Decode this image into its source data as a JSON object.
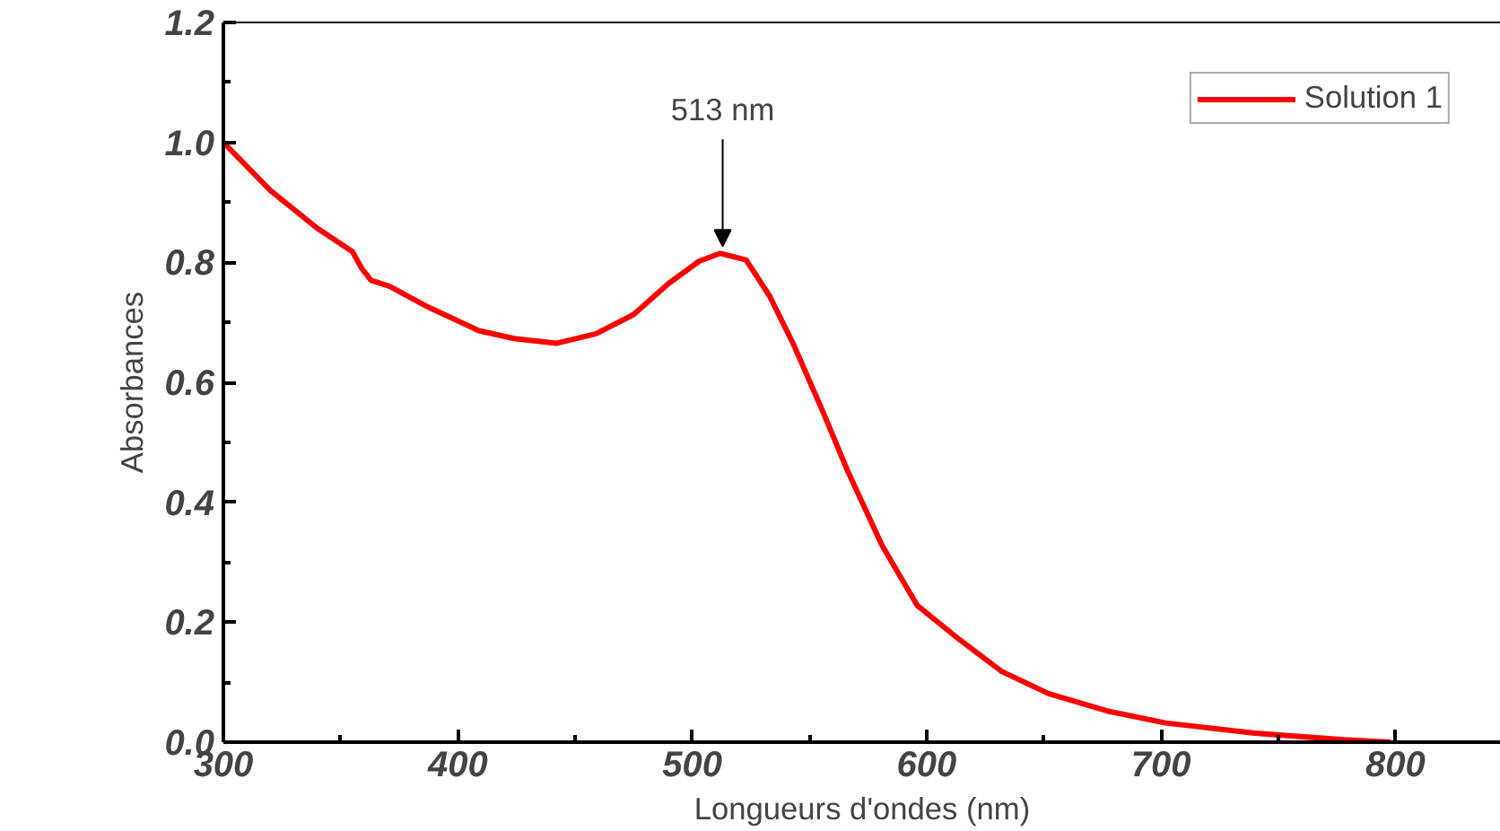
{
  "chart_data": {
    "type": "line",
    "xlabel": "Longueurs d'ondes (nm)",
    "ylabel": "Absorbances",
    "xlim": [
      300,
      845
    ],
    "ylim": [
      0,
      1.2
    ],
    "xticks": [
      300,
      400,
      500,
      600,
      700,
      800
    ],
    "yticks": [
      {
        "value": 0,
        "label": "0.0"
      },
      {
        "value": 0.2,
        "label": "0.2"
      },
      {
        "value": 0.4,
        "label": "0.4"
      },
      {
        "value": 0.6,
        "label": "0.6"
      },
      {
        "value": 0.8,
        "label": "0.8"
      },
      {
        "value": 1.0,
        "label": "1.0"
      },
      {
        "value": 1.2,
        "label": "1.2"
      }
    ],
    "grid": false,
    "legend": "top right",
    "annotations": [
      {
        "text": "513 nm",
        "x": 513,
        "y": 0.815
      }
    ],
    "series": [
      {
        "name": "Solution 1",
        "color": "#ff0000",
        "x": [
          300,
          320,
          340,
          355,
          359,
          363,
          371,
          386,
          409,
          424,
          442,
          459,
          475,
          490,
          503,
          512,
          523,
          533,
          543,
          556,
          566,
          581,
          596,
          614,
          632,
          652,
          677,
          702,
          740,
          778,
          798
        ],
        "values": [
          1.0,
          0.92,
          0.857,
          0.818,
          0.79,
          0.77,
          0.76,
          0.728,
          0.686,
          0.673,
          0.665,
          0.681,
          0.713,
          0.765,
          0.802,
          0.815,
          0.804,
          0.744,
          0.665,
          0.549,
          0.455,
          0.328,
          0.228,
          0.171,
          0.118,
          0.081,
          0.052,
          0.032,
          0.015,
          0.004,
          0.0
        ]
      }
    ]
  }
}
